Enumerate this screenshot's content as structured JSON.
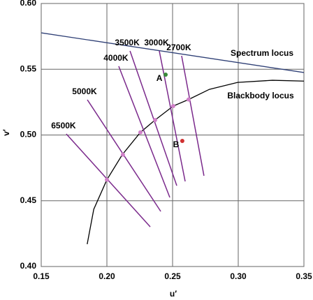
{
  "chart_data": {
    "type": "line",
    "xlabel": "u′",
    "ylabel": "v′",
    "xlim": [
      0.15,
      0.35
    ],
    "ylim": [
      0.4,
      0.6
    ],
    "xticks": [
      0.15,
      {
        "value": 0.2,
        "label": "0.20"
      },
      0.25,
      {
        "value": 0.3,
        "label": "0.30"
      },
      0.35
    ],
    "yticks": [
      {
        "value": 0.4,
        "label": "0.40"
      },
      0.45,
      {
        "value": 0.5,
        "label": "0.50"
      },
      0.55,
      {
        "value": 0.6,
        "label": "0.60"
      }
    ],
    "grid": true,
    "series": [
      {
        "name": "Spectrum locus",
        "color": "#2e3f75",
        "x": [
          0.15,
          0.35
        ],
        "values": [
          0.5777,
          0.5475
        ]
      },
      {
        "name": "Blackbody locus",
        "color": "#000000",
        "x": [
          0.185,
          0.19,
          0.2,
          0.2117,
          0.2255,
          0.2367,
          0.2505,
          0.2622,
          0.278,
          0.2995,
          0.326,
          0.35
        ],
        "values": [
          0.417,
          0.4435,
          0.466,
          0.485,
          0.502,
          0.5114,
          0.522,
          0.527,
          0.5347,
          0.54,
          0.5416,
          0.541
        ]
      },
      {
        "name": "6500K",
        "color": "#7b2a8c",
        "x": [
          0.1691,
          0.233
        ],
        "values": [
          0.5008,
          0.4302
        ]
      },
      {
        "name": "5000K",
        "color": "#7b2a8c",
        "x": [
          0.1851,
          0.241
        ],
        "values": [
          0.5268,
          0.4419
        ]
      },
      {
        "name": "4000K",
        "color": "#7b2a8c",
        "x": [
          0.209,
          0.2479
        ],
        "values": [
          0.5523,
          0.4525
        ]
      },
      {
        "name": "3500K",
        "color": "#7b2a8c",
        "x": [
          0.2176,
          0.2532
        ],
        "values": [
          0.5639,
          0.4615
        ]
      },
      {
        "name": "3000K",
        "color": "#7b2a8c",
        "x": [
          0.2399,
          0.2596
        ],
        "values": [
          0.5639,
          0.4647
        ]
      },
      {
        "name": "2700K",
        "color": "#7b2a8c",
        "x": [
          0.2569,
          0.2739
        ],
        "values": [
          0.5602,
          0.469
        ]
      }
    ],
    "locus_points": {
      "color": "#d080c8",
      "x": [
        0.2,
        0.2122,
        0.2255,
        0.2367,
        0.2505,
        0.2622
      ],
      "values": [
        0.466,
        0.485,
        0.502,
        0.5114,
        0.522,
        0.527
      ]
    },
    "points": [
      {
        "name": "A",
        "color": "#3a8a3a",
        "x": [
          0.2447
        ],
        "values": [
          0.5459
        ]
      },
      {
        "name": "B",
        "color": "#d03030",
        "x": [
          0.2574
        ],
        "values": [
          0.4955
        ]
      }
    ]
  }
}
